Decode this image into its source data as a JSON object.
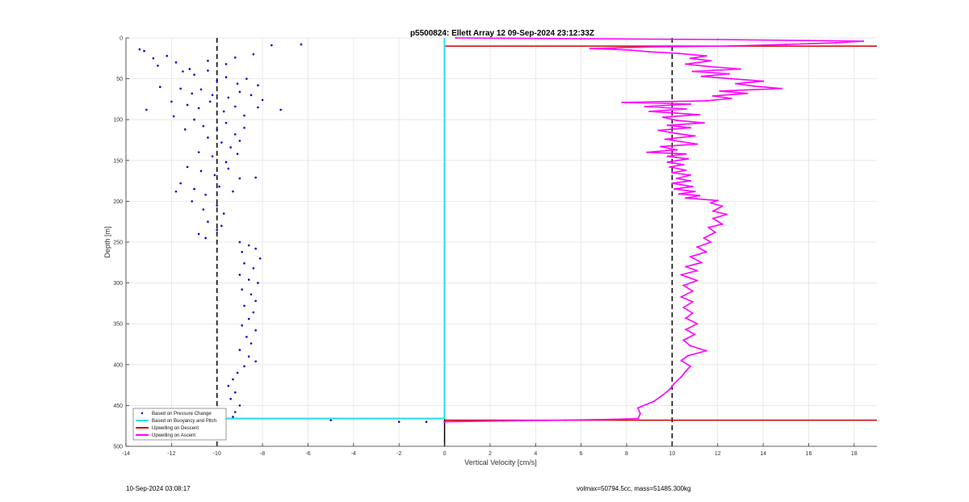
{
  "chart_data": {
    "type": "scatter",
    "title": "p5500824: Ellett Array 12 09-Sep-2024 23:12:33Z",
    "xlabel": "Vertical Velocity [cm/s]",
    "ylabel": "Depth [m]",
    "xlim": [
      -14,
      19
    ],
    "ylim": [
      500,
      0
    ],
    "y_reversed": true,
    "x_ticks": [
      -14,
      -12,
      -10,
      -8,
      -6,
      -4,
      -2,
      0,
      2,
      4,
      6,
      8,
      10,
      12,
      14,
      16,
      18
    ],
    "y_ticks": [
      0,
      50,
      100,
      150,
      200,
      250,
      300,
      350,
      400,
      450,
      500
    ],
    "grid": true,
    "legend_position": "bottom-left",
    "reference_lines": {
      "vertical_dashed": [
        -10,
        10
      ],
      "horizontal_red": [
        10,
        468
      ]
    },
    "series": [
      {
        "name": "Based on Pressure Change",
        "style": "dots",
        "color": "#0000cc",
        "points": [
          [
            -13.4,
            14
          ],
          [
            -13.2,
            16
          ],
          [
            -12.8,
            25
          ],
          [
            -12.6,
            34
          ],
          [
            -12.2,
            22
          ],
          [
            -11.8,
            30
          ],
          [
            -11.2,
            38
          ],
          [
            -10.4,
            28
          ],
          [
            -9.6,
            32
          ],
          [
            -9.2,
            24
          ],
          [
            -8.4,
            20
          ],
          [
            -7.6,
            9
          ],
          [
            -6.3,
            8
          ],
          [
            -11.5,
            41
          ],
          [
            -11.0,
            45
          ],
          [
            -10.4,
            40
          ],
          [
            -10.0,
            52
          ],
          [
            -9.6,
            48
          ],
          [
            -9.1,
            56
          ],
          [
            -8.7,
            50
          ],
          [
            -8.2,
            58
          ],
          [
            -12.5,
            60
          ],
          [
            -11.6,
            62
          ],
          [
            -11.1,
            68
          ],
          [
            -10.7,
            63
          ],
          [
            -10.2,
            70
          ],
          [
            -9.5,
            73
          ],
          [
            -9.0,
            66
          ],
          [
            -8.5,
            70
          ],
          [
            -8.0,
            76
          ],
          [
            -12.0,
            78
          ],
          [
            -11.3,
            82
          ],
          [
            -10.8,
            86
          ],
          [
            -10.3,
            78
          ],
          [
            -9.7,
            90
          ],
          [
            -9.2,
            84
          ],
          [
            -8.8,
            95
          ],
          [
            -8.2,
            85
          ],
          [
            -7.2,
            88
          ],
          [
            -13.1,
            88
          ],
          [
            -11.9,
            96
          ],
          [
            -11.0,
            100
          ],
          [
            -10.6,
            108
          ],
          [
            -10.0,
            112
          ],
          [
            -9.6,
            104
          ],
          [
            -9.2,
            118
          ],
          [
            -8.8,
            110
          ],
          [
            -11.4,
            112
          ],
          [
            -10.4,
            122
          ],
          [
            -9.8,
            128
          ],
          [
            -9.4,
            134
          ],
          [
            -9.0,
            126
          ],
          [
            -10.8,
            140
          ],
          [
            -10.2,
            145
          ],
          [
            -9.6,
            152
          ],
          [
            -9.1,
            142
          ],
          [
            -11.3,
            158
          ],
          [
            -10.7,
            163
          ],
          [
            -10.1,
            168
          ],
          [
            -9.5,
            160
          ],
          [
            -9.0,
            172
          ],
          [
            -8.3,
            171
          ],
          [
            -11.6,
            178
          ],
          [
            -11.0,
            185
          ],
          [
            -10.5,
            192
          ],
          [
            -9.9,
            182
          ],
          [
            -9.3,
            188
          ],
          [
            -11.8,
            188
          ],
          [
            -11.1,
            200
          ],
          [
            -10.6,
            210
          ],
          [
            -10.0,
            205
          ],
          [
            -9.7,
            215
          ],
          [
            -10.4,
            225
          ],
          [
            -10.0,
            235
          ],
          [
            -9.8,
            230
          ],
          [
            -10.8,
            240
          ],
          [
            -10.5,
            245
          ],
          [
            -9.0,
            250
          ],
          [
            -8.6,
            254
          ],
          [
            -8.9,
            262
          ],
          [
            -8.3,
            258
          ],
          [
            -8.1,
            270
          ],
          [
            -8.8,
            276
          ],
          [
            -8.4,
            282
          ],
          [
            -9.0,
            290
          ],
          [
            -8.6,
            296
          ],
          [
            -8.2,
            300
          ],
          [
            -8.9,
            308
          ],
          [
            -8.5,
            314
          ],
          [
            -8.3,
            322
          ],
          [
            -8.8,
            328
          ],
          [
            -8.4,
            336
          ],
          [
            -8.6,
            344
          ],
          [
            -8.9,
            352
          ],
          [
            -8.3,
            358
          ],
          [
            -8.7,
            366
          ],
          [
            -8.5,
            374
          ],
          [
            -9.0,
            382
          ],
          [
            -8.6,
            390
          ],
          [
            -8.3,
            396
          ],
          [
            -8.8,
            402
          ],
          [
            -9.1,
            410
          ],
          [
            -9.3,
            418
          ],
          [
            -9.5,
            426
          ],
          [
            -9.2,
            434
          ],
          [
            -9.4,
            442
          ],
          [
            -9.0,
            450
          ],
          [
            -9.2,
            458
          ],
          [
            -9.3,
            464
          ],
          [
            -5.0,
            468
          ],
          [
            -2.0,
            470
          ],
          [
            -0.8,
            470
          ],
          [
            0.0,
            470
          ]
        ]
      },
      {
        "name": "Based on Buoyancy and Pitch",
        "style": "line",
        "color": "#33ddee",
        "points": [
          [
            0,
            0
          ],
          [
            0,
            466
          ],
          [
            -10.1,
            466
          ],
          [
            0,
            466
          ]
        ]
      },
      {
        "name": "Upwelling on Descent",
        "style": "line",
        "color": "#cc0000",
        "points": []
      },
      {
        "name": "Upwelling on Ascent",
        "style": "line-markers",
        "color": "#ff00ff",
        "points": [
          [
            0,
            470
          ],
          [
            2.6,
            469
          ],
          [
            5.3,
            468
          ],
          [
            7.4,
            467
          ],
          [
            8.5,
            466
          ],
          [
            8.6,
            460
          ],
          [
            8.5,
            453
          ],
          [
            9.2,
            445
          ],
          [
            9.6,
            437
          ],
          [
            9.9,
            430
          ],
          [
            10.1,
            423
          ],
          [
            10.4,
            415
          ],
          [
            10.6,
            408
          ],
          [
            10.8,
            402
          ],
          [
            10.4,
            395
          ],
          [
            10.7,
            389
          ],
          [
            11.5,
            383
          ],
          [
            10.8,
            377
          ],
          [
            10.5,
            370
          ],
          [
            11.0,
            363
          ],
          [
            10.6,
            357
          ],
          [
            11.1,
            350
          ],
          [
            10.6,
            343
          ],
          [
            10.9,
            337
          ],
          [
            10.5,
            330
          ],
          [
            10.9,
            323
          ],
          [
            10.4,
            317
          ],
          [
            10.9,
            310
          ],
          [
            10.5,
            303
          ],
          [
            11.1,
            297
          ],
          [
            10.4,
            290
          ],
          [
            11.1,
            285
          ],
          [
            10.6,
            280
          ],
          [
            11.3,
            275
          ],
          [
            10.8,
            268
          ],
          [
            11.5,
            262
          ],
          [
            11.1,
            256
          ],
          [
            11.7,
            250
          ],
          [
            11.4,
            245
          ],
          [
            11.9,
            238
          ],
          [
            11.6,
            232
          ],
          [
            12.2,
            228
          ],
          [
            11.8,
            221
          ],
          [
            12.4,
            216
          ],
          [
            11.8,
            212
          ],
          [
            12.2,
            206
          ],
          [
            11.7,
            202
          ],
          [
            12.0,
            199
          ],
          [
            11.1,
            197
          ],
          [
            10.6,
            196
          ],
          [
            11.2,
            193
          ],
          [
            10.3,
            191
          ],
          [
            11.0,
            188
          ],
          [
            10.1,
            185
          ],
          [
            10.9,
            182
          ],
          [
            10.0,
            178
          ],
          [
            10.8,
            175
          ],
          [
            10.2,
            172
          ],
          [
            10.8,
            168
          ],
          [
            10.0,
            165
          ],
          [
            10.6,
            162
          ],
          [
            9.9,
            158
          ],
          [
            10.5,
            155
          ],
          [
            9.8,
            152
          ],
          [
            10.7,
            148
          ],
          [
            9.8,
            145
          ],
          [
            10.6,
            142
          ],
          [
            8.9,
            140
          ],
          [
            10.2,
            137
          ],
          [
            9.5,
            133
          ],
          [
            11.1,
            130
          ],
          [
            10.4,
            127
          ],
          [
            9.7,
            124
          ],
          [
            11.0,
            120
          ],
          [
            10.2,
            117
          ],
          [
            9.4,
            113
          ],
          [
            10.8,
            110
          ],
          [
            9.8,
            107
          ],
          [
            11.4,
            104
          ],
          [
            10.2,
            101
          ],
          [
            9.6,
            97
          ],
          [
            11.2,
            94
          ],
          [
            9.0,
            90
          ],
          [
            10.6,
            87
          ],
          [
            8.8,
            84
          ],
          [
            10.8,
            81
          ],
          [
            7.8,
            79
          ],
          [
            11.5,
            77
          ],
          [
            12.6,
            74
          ],
          [
            11.8,
            71
          ],
          [
            13.3,
            68
          ],
          [
            12.1,
            65
          ],
          [
            14.8,
            62
          ],
          [
            13.6,
            59
          ],
          [
            12.8,
            56
          ],
          [
            14.0,
            53
          ],
          [
            12.6,
            50
          ],
          [
            11.3,
            47
          ],
          [
            12.5,
            44
          ],
          [
            10.9,
            41
          ],
          [
            13.0,
            38
          ],
          [
            11.6,
            35
          ],
          [
            10.6,
            32
          ],
          [
            11.7,
            28
          ],
          [
            10.8,
            25
          ],
          [
            11.5,
            22
          ],
          [
            10.3,
            19
          ],
          [
            9.0,
            17
          ],
          [
            8.2,
            15
          ],
          [
            7.5,
            14
          ],
          [
            6.4,
            13
          ],
          [
            7.8,
            12
          ],
          [
            9.2,
            11
          ],
          [
            12.5,
            10
          ],
          [
            15.0,
            8
          ],
          [
            17.2,
            6
          ],
          [
            18.4,
            4
          ],
          [
            12.0,
            2
          ],
          [
            6.0,
            1
          ],
          [
            0.5,
            0
          ]
        ]
      }
    ]
  },
  "footer": {
    "left": "10-Sep-2024 03:08:17",
    "right": "volmax=50794.5cc, mass=51485.300kg"
  }
}
